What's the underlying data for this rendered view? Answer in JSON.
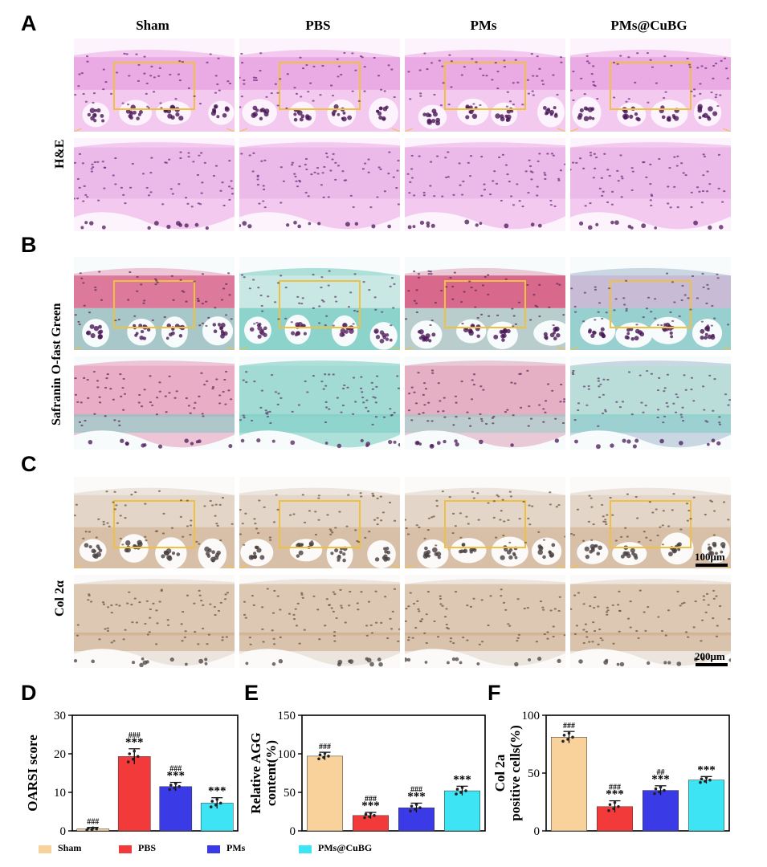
{
  "panels": {
    "A": "A",
    "B": "B",
    "C": "C",
    "D": "D",
    "E": "E",
    "F": "F"
  },
  "column_headers": [
    "Sham",
    "PBS",
    "PMs",
    "PMs@CuBG"
  ],
  "row_labels": {
    "he": "H&E",
    "safranin": "Safranin O-fast Green",
    "col2": "Col 2α"
  },
  "scale_bars": {
    "top": "100μm",
    "bottom": "200μm"
  },
  "colors": {
    "Sham": "#f9d19a",
    "PBS": "#f23a3a",
    "PMs": "#3a3ae6",
    "PMs@CuBG": "#3de4f3"
  },
  "legend": {
    "items": [
      "Sham",
      "PBS",
      "PMs",
      "PMs@CuBG"
    ]
  },
  "chart_data": [
    {
      "type": "bar",
      "panel": "D",
      "categories": [
        "Sham",
        "PBS",
        "PMs",
        "PMs@CuBG"
      ],
      "values": [
        0.5,
        19.3,
        11.5,
        7.2
      ],
      "errors": [
        0.4,
        2.0,
        1.1,
        1.4
      ],
      "annotations": [
        [
          "###"
        ],
        [
          "###",
          "***"
        ],
        [
          "###",
          "***"
        ],
        [
          "***"
        ]
      ],
      "ylabel": "OARSI score",
      "ylim": [
        0,
        30
      ],
      "yticks": [
        0,
        10,
        20,
        30
      ]
    },
    {
      "type": "bar",
      "panel": "E",
      "categories": [
        "Sham",
        "PBS",
        "PMs",
        "PMs@CuBG"
      ],
      "values": [
        97,
        20,
        30,
        52
      ],
      "errors": [
        5,
        4,
        6,
        6
      ],
      "annotations": [
        [
          "###"
        ],
        [
          "###",
          "***"
        ],
        [
          "###",
          "***"
        ],
        [
          "***"
        ]
      ],
      "ylabel": "Relative AGG content(%)",
      "ylabel_lines": [
        "Relative AGG",
        "content(%)"
      ],
      "ylim": [
        0,
        150
      ],
      "yticks": [
        0,
        50,
        100,
        150
      ]
    },
    {
      "type": "bar",
      "panel": "F",
      "categories": [
        "Sham",
        "PBS",
        "PMs",
        "PMs@CuBG"
      ],
      "values": [
        81,
        21,
        35,
        44
      ],
      "errors": [
        5,
        5,
        4,
        3
      ],
      "annotations": [
        [
          "###"
        ],
        [
          "###",
          "***"
        ],
        [
          "##",
          "***"
        ],
        [
          "***"
        ]
      ],
      "ylabel": "Col 2a positive cells(%)",
      "ylabel_lines": [
        "Col 2a",
        "positive cells(%)"
      ],
      "ylim": [
        0,
        100
      ],
      "yticks": [
        0,
        50,
        100
      ]
    }
  ]
}
